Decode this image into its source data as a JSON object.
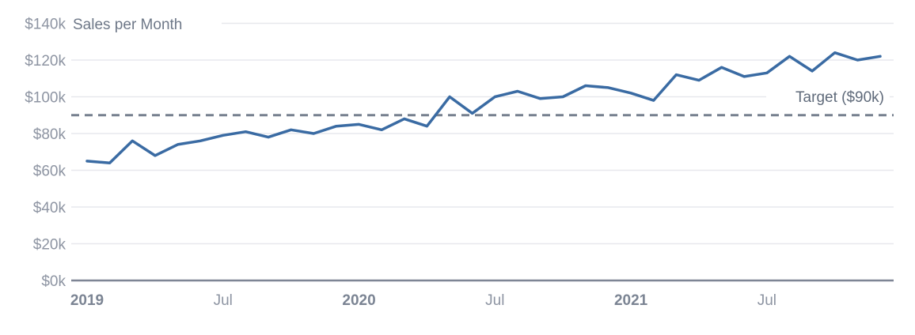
{
  "chart_data": {
    "type": "line",
    "title": "Sales per Month",
    "unit": "USD thousands",
    "series_name": "Sales",
    "categories": [
      "Jan 2019",
      "Feb 2019",
      "Mar 2019",
      "Apr 2019",
      "May 2019",
      "Jun 2019",
      "Jul 2019",
      "Aug 2019",
      "Sep 2019",
      "Oct 2019",
      "Nov 2019",
      "Dec 2019",
      "Jan 2020",
      "Feb 2020",
      "Mar 2020",
      "Apr 2020",
      "May 2020",
      "Jun 2020",
      "Jul 2020",
      "Aug 2020",
      "Sep 2020",
      "Oct 2020",
      "Nov 2020",
      "Dec 2020",
      "Jan 2021",
      "Feb 2021",
      "Mar 2021",
      "Apr 2021",
      "May 2021",
      "Jun 2021",
      "Jul 2021",
      "Aug 2021",
      "Sep 2021",
      "Oct 2021",
      "Nov 2021",
      "Dec 2021"
    ],
    "values": [
      65,
      64,
      76,
      68,
      74,
      76,
      79,
      81,
      78,
      82,
      80,
      84,
      85,
      82,
      88,
      84,
      100,
      91,
      100,
      103,
      99,
      100,
      106,
      105,
      102,
      98,
      112,
      109,
      116,
      111,
      113,
      122,
      114,
      124,
      120,
      122
    ],
    "target": {
      "value": 90,
      "label": "Target ($90k)"
    },
    "ylim": [
      0,
      140
    ],
    "yticks": [
      0,
      20,
      40,
      60,
      80,
      100,
      120,
      140
    ],
    "ytick_labels": [
      "$0k",
      "$20k",
      "$40k",
      "$60k",
      "$80k",
      "$100k",
      "$120k",
      "$140k"
    ],
    "xticks": [
      {
        "month_index": 0,
        "label": "2019",
        "bold": true
      },
      {
        "month_index": 6,
        "label": "Jul",
        "bold": false
      },
      {
        "month_index": 12,
        "label": "2020",
        "bold": true
      },
      {
        "month_index": 18,
        "label": "Jul",
        "bold": false
      },
      {
        "month_index": 24,
        "label": "2021",
        "bold": true
      },
      {
        "month_index": 30,
        "label": "Jul",
        "bold": false
      }
    ],
    "legend": "none",
    "grid": "horizontal"
  },
  "colors": {
    "background": "#ffffff",
    "series_line": "#3a6ba3",
    "target_line": "#77808f",
    "gridline": "#e7e8ed",
    "axis_line": "#7e8595",
    "tick_label": "#8d94a2",
    "year_label": "#7b8493",
    "title": "#6e7888",
    "target_label": "#5f6a7a"
  }
}
